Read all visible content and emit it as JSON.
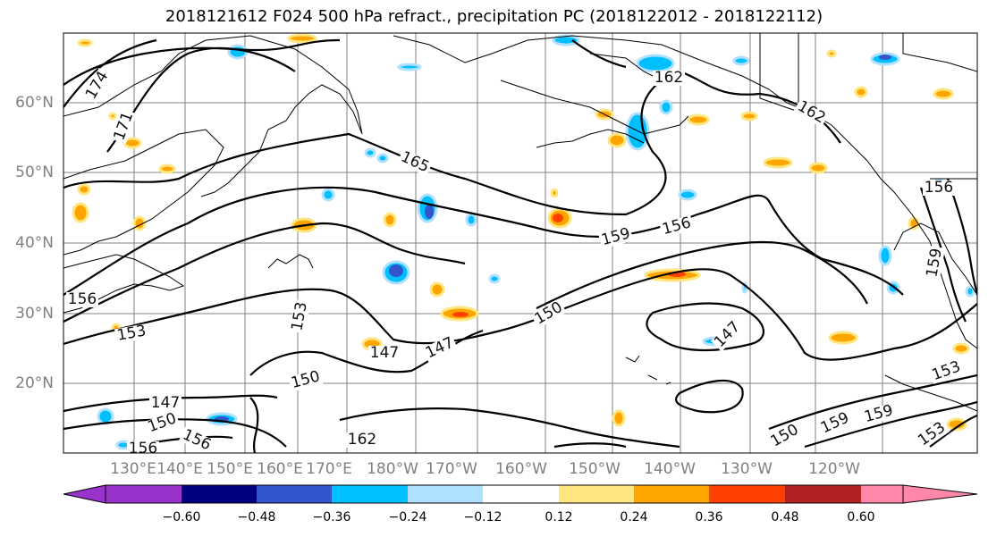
{
  "title": "2018121612 F024 500 hPa refract., precipitation PC (2018122012 - 2018122112)",
  "map": {
    "latitude_labels": [
      "60°N",
      "50°N",
      "40°N",
      "30°N",
      "20°N"
    ],
    "longitude_labels": [
      "130°E",
      "140°E",
      "150°E",
      "160°E",
      "170°E",
      "180°W",
      "170°W",
      "160°W",
      "150°W",
      "140°W",
      "130°W",
      "120°W"
    ],
    "contour_labels": [
      "174",
      "171",
      "165",
      "162",
      "162",
      "159",
      "156",
      "156",
      "156",
      "153",
      "153",
      "150",
      "150",
      "150",
      "147",
      "147",
      "147",
      "147",
      "150",
      "159",
      "159",
      "153",
      "156",
      "159",
      "156",
      "162",
      "153"
    ],
    "contour_color": "#000000",
    "land_outline_color": "#000000",
    "grid_color": "#808080"
  },
  "colorbar": {
    "colors": [
      "#9933cc",
      "#000080",
      "#3355cc",
      "#00bfff",
      "#b0e0ff",
      "#ffffff",
      "#ffe680",
      "#ffa500",
      "#ff4000",
      "#b22222",
      "#ff88aa"
    ],
    "tick_labels": [
      "−0.60",
      "−0.48",
      "−0.36",
      "−0.24",
      "−0.12",
      "0.12",
      "0.24",
      "0.36",
      "0.48",
      "0.60"
    ],
    "extend": "both"
  }
}
